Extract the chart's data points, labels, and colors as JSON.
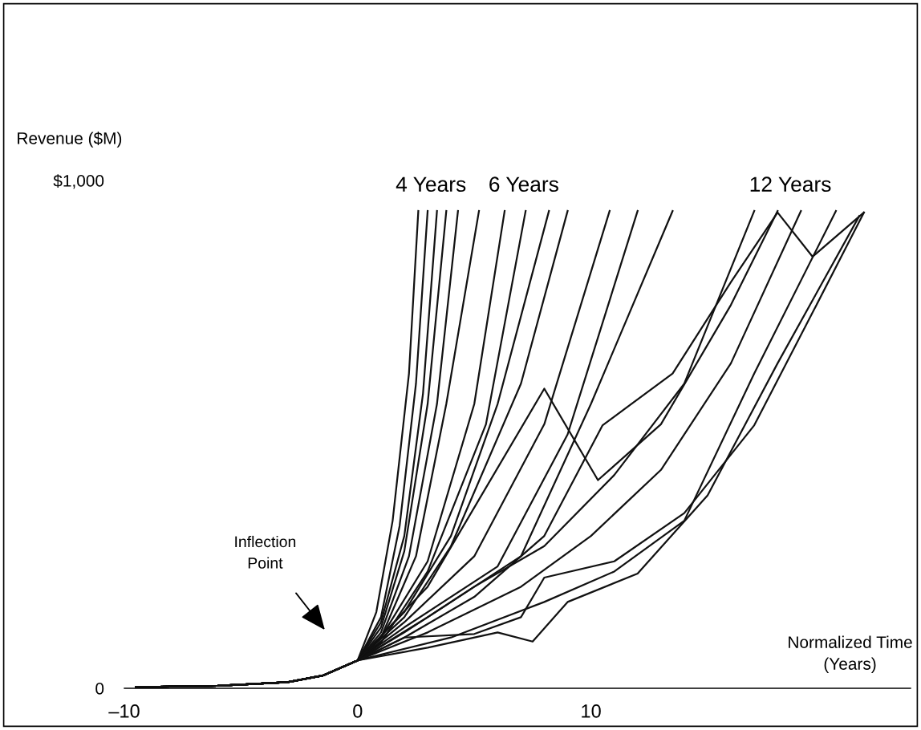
{
  "chart_data": {
    "type": "line",
    "xlabel": "Normalized Time\n(Years)",
    "ylabel": "Revenue ($M)",
    "xlim": [
      -10,
      23.7
    ],
    "ylim": [
      0,
      1000
    ],
    "xticks": [
      {
        "value": -10,
        "label": "–10"
      },
      0,
      10
    ],
    "yticks": [
      0,
      {
        "value": 1000,
        "label": "$1,000"
      }
    ],
    "grid": false,
    "legend": false,
    "marker": "none",
    "line_style": "solid",
    "annotations": [
      "Inflection\nPoint",
      "4 Years",
      "6 Years",
      "12 Years"
    ],
    "series": [
      {
        "color": "#111111",
        "x": [
          -9.5,
          -6,
          -3,
          -1.5,
          0,
          0.8,
          1.5,
          2.2,
          2.6
        ],
        "values": [
          2,
          5,
          12,
          25,
          55,
          150,
          330,
          620,
          940
        ]
      },
      {
        "color": "#111111",
        "x": [
          -9.5,
          -6,
          -3,
          -1.5,
          0,
          1,
          1.8,
          2.5,
          3.0
        ],
        "values": [
          2,
          5,
          12,
          25,
          55,
          140,
          320,
          600,
          940
        ]
      },
      {
        "color": "#111111",
        "x": [
          -9.5,
          -6,
          -3,
          -1.5,
          0,
          1,
          2,
          2.8,
          3.4
        ],
        "values": [
          2,
          5,
          12,
          25,
          55,
          130,
          300,
          580,
          940
        ]
      },
      {
        "color": "#111111",
        "x": [
          -9.5,
          -6,
          -3,
          -1.5,
          0,
          1,
          2,
          3,
          3.8
        ],
        "values": [
          2,
          5,
          12,
          25,
          55,
          120,
          270,
          560,
          940
        ]
      },
      {
        "color": "#111111",
        "x": [
          -9.5,
          -6,
          -3,
          -1.5,
          0,
          1,
          2.2,
          3.4,
          4.3
        ],
        "values": [
          2,
          5,
          12,
          25,
          55,
          110,
          260,
          560,
          940
        ]
      },
      {
        "color": "#111111",
        "x": [
          -9.5,
          -6,
          -3,
          -1.5,
          0,
          1,
          2.5,
          3.8,
          5.2
        ],
        "values": [
          2,
          5,
          12,
          25,
          55,
          100,
          260,
          560,
          940
        ]
      },
      {
        "color": "#111111",
        "x": [
          -9.5,
          -6,
          -3,
          -1.5,
          0,
          1,
          3,
          5,
          6.3
        ],
        "values": [
          2,
          5,
          12,
          25,
          55,
          100,
          250,
          560,
          940
        ]
      },
      {
        "color": "#111111",
        "x": [
          -9.5,
          -6,
          -3,
          -1.5,
          0,
          1,
          3,
          5.5,
          7.2
        ],
        "values": [
          2,
          5,
          12,
          25,
          55,
          90,
          230,
          520,
          940
        ]
      },
      {
        "color": "#111111",
        "x": [
          -9.5,
          -6,
          -3,
          -1.5,
          0,
          2,
          4,
          6,
          8.2
        ],
        "values": [
          2,
          5,
          12,
          25,
          55,
          150,
          300,
          560,
          940
        ]
      },
      {
        "color": "#111111",
        "x": [
          -9.5,
          -6,
          -3,
          -1.5,
          0,
          2,
          4,
          7,
          9
        ],
        "values": [
          2,
          5,
          12,
          25,
          55,
          140,
          280,
          600,
          940
        ]
      },
      {
        "color": "#111111",
        "x": [
          -9.5,
          -6,
          -3,
          -1.5,
          0,
          2,
          5,
          8,
          10.8
        ],
        "values": [
          2,
          5,
          12,
          25,
          55,
          130,
          260,
          520,
          940
        ]
      },
      {
        "color": "#111111",
        "x": [
          -9.5,
          -6,
          -3,
          -1.5,
          0,
          2,
          6,
          9,
          12
        ],
        "values": [
          2,
          5,
          12,
          25,
          55,
          120,
          240,
          500,
          940
        ]
      },
      {
        "color": "#111111",
        "x": [
          -9.5,
          -6,
          -3,
          -1.5,
          0,
          3,
          7,
          10,
          13.5
        ],
        "values": [
          2,
          5,
          12,
          25,
          55,
          140,
          260,
          560,
          940
        ]
      },
      {
        "color": "#111111",
        "x": [
          -9.5,
          -6,
          -3,
          -1.5,
          0,
          3,
          8,
          10.3,
          13,
          16,
          18
        ],
        "values": [
          2,
          5,
          12,
          25,
          55,
          200,
          590,
          410,
          520,
          755,
          940
        ]
      },
      {
        "color": "#111111",
        "x": [
          -9.5,
          -6,
          -3,
          -1.5,
          0,
          2,
          5,
          8,
          11,
          14,
          17
        ],
        "values": [
          2,
          5,
          12,
          25,
          55,
          110,
          200,
          280,
          420,
          600,
          940
        ]
      },
      {
        "color": "#111111",
        "x": [
          -9.5,
          -6,
          -3,
          -1.5,
          0,
          3,
          7,
          10,
          13,
          16,
          19
        ],
        "values": [
          2,
          5,
          12,
          25,
          55,
          110,
          200,
          300,
          430,
          640,
          940
        ]
      },
      {
        "color": "#111111",
        "x": [
          -9.5,
          -6,
          -3,
          -1.5,
          0,
          4,
          8,
          11,
          14,
          17,
          20.5
        ],
        "values": [
          2,
          5,
          12,
          25,
          55,
          100,
          170,
          230,
          330,
          620,
          940
        ]
      },
      {
        "color": "#111111",
        "x": [
          -9.5,
          -6,
          -3,
          -1.5,
          0,
          2,
          5,
          7,
          8,
          11,
          14,
          17,
          19.5,
          21.7
        ],
        "values": [
          2,
          5,
          12,
          25,
          55,
          100,
          107,
          140,
          218,
          250,
          345,
          518,
          740,
          937
        ]
      },
      {
        "color": "#111111",
        "x": [
          -9.5,
          -6,
          -3,
          -1.5,
          0,
          3,
          6,
          7.5,
          9,
          12,
          15,
          18,
          21.5
        ],
        "values": [
          2,
          5,
          12,
          25,
          55,
          80,
          110,
          92,
          170,
          226,
          380,
          640,
          930
        ]
      },
      {
        "color": "#111111",
        "x": [
          -9.5,
          -6,
          -3,
          -1.5,
          0,
          2,
          5,
          8,
          10.5,
          13.5,
          16,
          18,
          19.5,
          21.7
        ],
        "values": [
          2,
          5,
          12,
          25,
          55,
          100,
          180,
          300,
          518,
          620,
          800,
          937,
          850,
          937
        ]
      }
    ]
  }
}
